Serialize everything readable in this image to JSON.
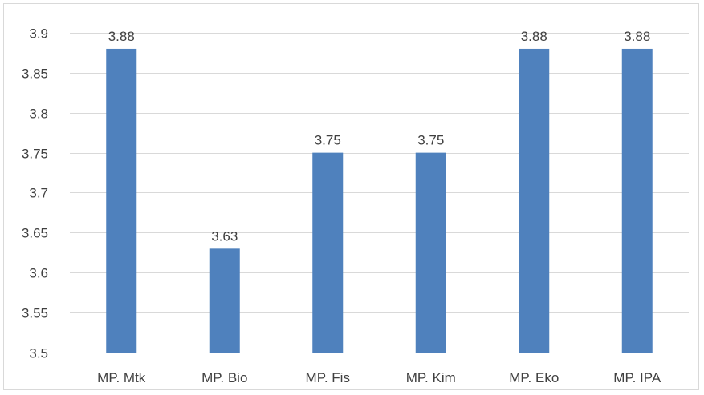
{
  "chart_data": {
    "type": "bar",
    "title": "",
    "xlabel": "",
    "ylabel": "",
    "categories": [
      "MP. Mtk",
      "MP. Bio",
      "MP. Fis",
      "MP. Kim",
      "MP. Eko",
      "MP. IPA"
    ],
    "values": [
      3.88,
      3.63,
      3.75,
      3.75,
      3.88,
      3.88
    ],
    "data_labels": [
      "3.88",
      "3.63",
      "3.75",
      "3.75",
      "3.88",
      "3.88"
    ],
    "ylim": [
      3.5,
      3.9
    ],
    "yticks": [
      3.5,
      3.55,
      3.6,
      3.65,
      3.7,
      3.75,
      3.8,
      3.85,
      3.9
    ],
    "ytick_labels": [
      "3.5",
      "3.55",
      "3.6",
      "3.65",
      "3.7",
      "3.75",
      "3.8",
      "3.85",
      "3.9"
    ],
    "grid": true,
    "legend": "none",
    "colors": {
      "bar": "#4f81bd",
      "grid": "#d9d9d9",
      "text": "#404040"
    }
  }
}
